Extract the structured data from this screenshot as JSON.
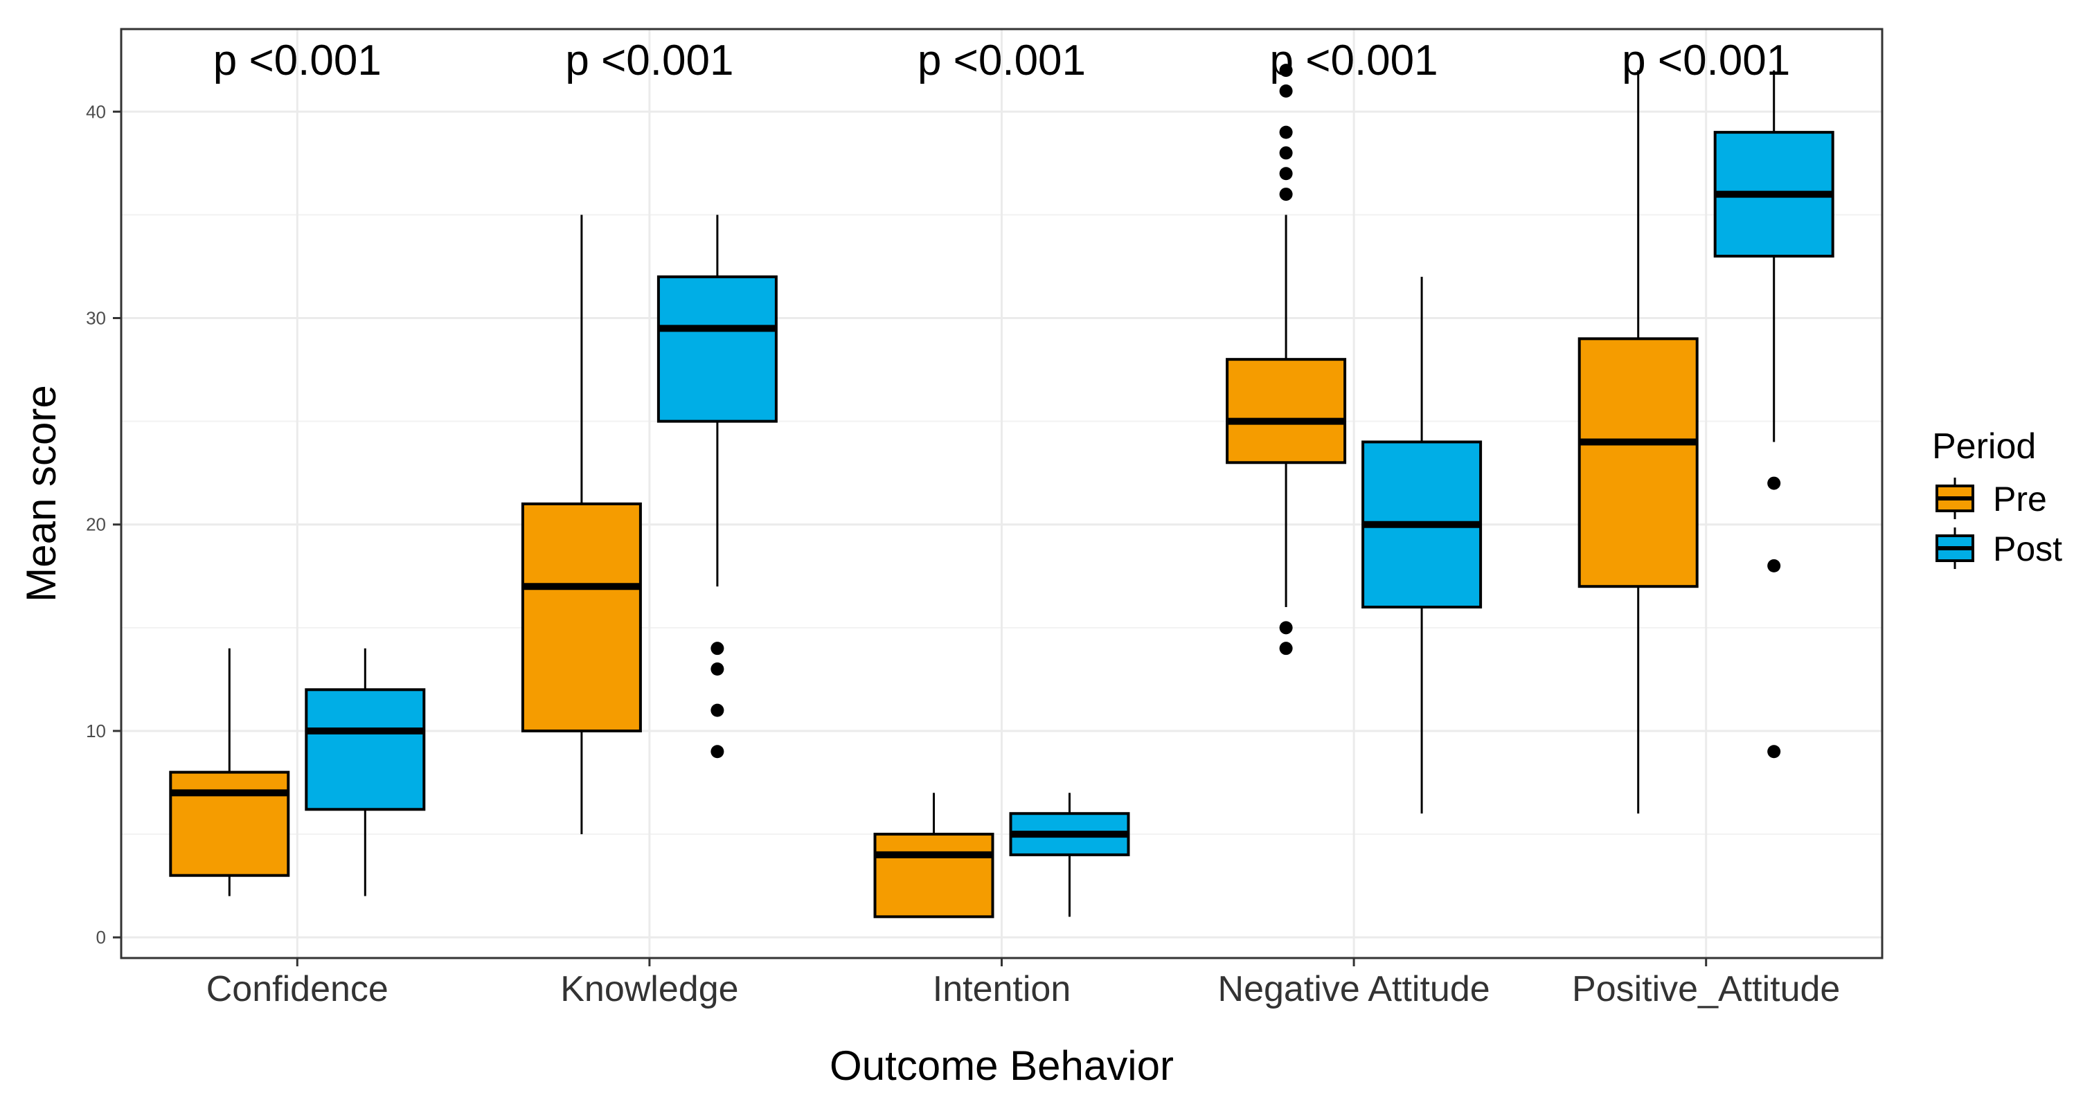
{
  "chart_data": {
    "type": "boxplot",
    "xlabel": "Outcome Behavior",
    "ylabel": "Mean score",
    "ylim": [
      -1,
      44
    ],
    "yticks": [
      0,
      10,
      20,
      30,
      40
    ],
    "grid": true,
    "categories": [
      "Confidence",
      "Knowledge",
      "Intention",
      "Negative Attitude",
      "Positive_Attitude"
    ],
    "annotations": [
      "p <0.001",
      "p <0.001",
      "p <0.001",
      "p <0.001",
      "p <0.001"
    ],
    "legend": {
      "title": "Period",
      "position": "right"
    },
    "series": [
      {
        "name": "Pre",
        "color": "#F59C00",
        "boxes": [
          {
            "whisker_low": 2,
            "q1": 3,
            "median": 7,
            "q3": 8,
            "whisker_high": 14,
            "outliers": []
          },
          {
            "whisker_low": 5,
            "q1": 10,
            "median": 17,
            "q3": 21,
            "whisker_high": 35,
            "outliers": []
          },
          {
            "whisker_low": 1,
            "q1": 1,
            "median": 4,
            "q3": 5,
            "whisker_high": 7,
            "outliers": []
          },
          {
            "whisker_low": 16,
            "q1": 23,
            "median": 25,
            "q3": 28,
            "whisker_high": 35,
            "outliers": [
              14,
              15,
              36,
              37,
              38,
              39,
              41,
              42
            ]
          },
          {
            "whisker_low": 6,
            "q1": 17,
            "median": 24,
            "q3": 29,
            "whisker_high": 42,
            "outliers": []
          }
        ]
      },
      {
        "name": "Post",
        "color": "#00AEE6",
        "boxes": [
          {
            "whisker_low": 2,
            "q1": 6.2,
            "median": 10,
            "q3": 12,
            "whisker_high": 14,
            "outliers": []
          },
          {
            "whisker_low": 17,
            "q1": 25,
            "median": 29.5,
            "q3": 32,
            "whisker_high": 35,
            "outliers": [
              9,
              11,
              13,
              14
            ]
          },
          {
            "whisker_low": 1,
            "q1": 4,
            "median": 5,
            "q3": 6,
            "whisker_high": 7,
            "outliers": []
          },
          {
            "whisker_low": 6,
            "q1": 16,
            "median": 20,
            "q3": 24,
            "whisker_high": 32,
            "outliers": []
          },
          {
            "whisker_low": 24,
            "q1": 33,
            "median": 36,
            "q3": 39,
            "whisker_high": 42,
            "outliers": [
              9,
              18,
              22
            ]
          }
        ]
      }
    ]
  }
}
